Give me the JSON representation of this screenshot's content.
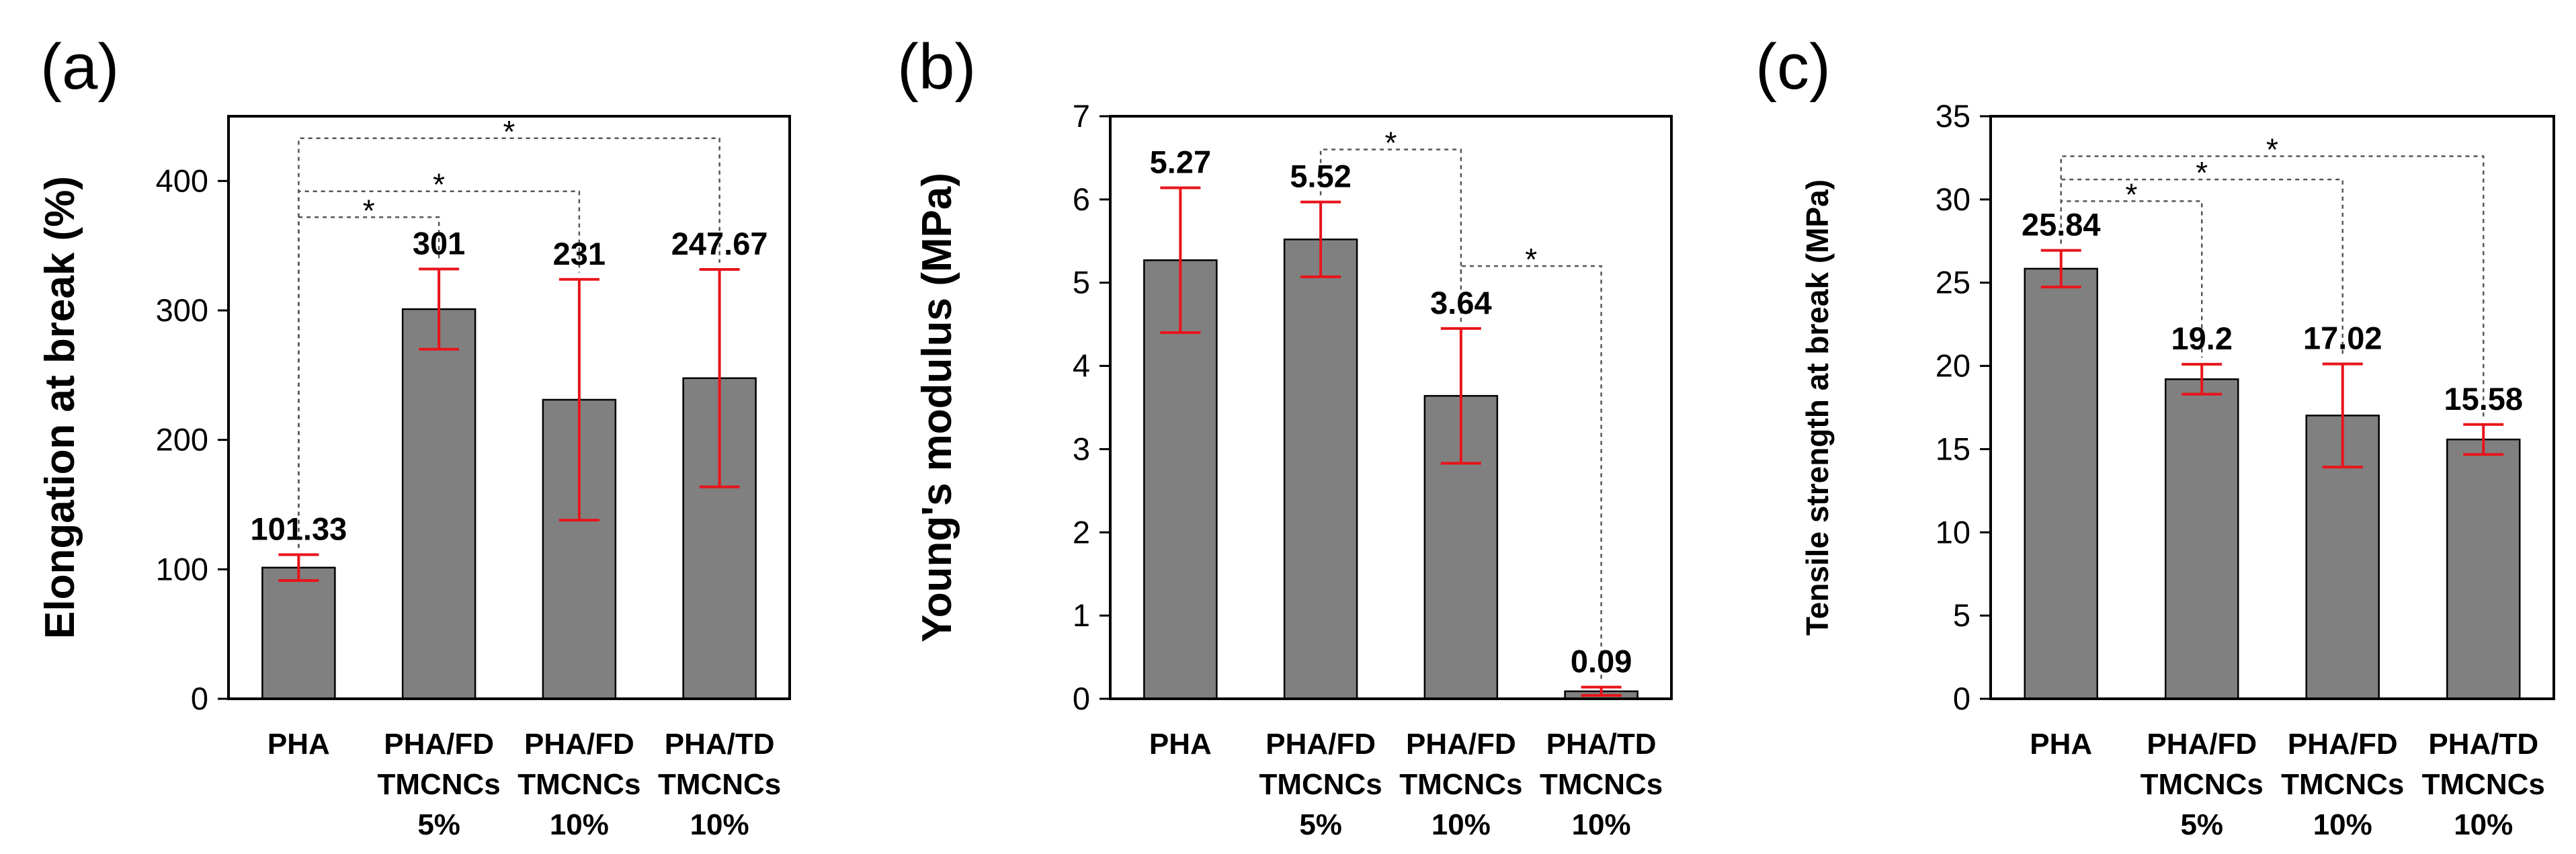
{
  "chart_data": [
    {
      "type": "bar",
      "panel": "(a)",
      "title": "",
      "xlabel": "",
      "ylabel": "Elongation at break (%)",
      "ylim": [
        0,
        450
      ],
      "yticks": [
        0,
        100,
        200,
        300,
        400
      ],
      "categories": [
        [
          "PHA"
        ],
        [
          "PHA/FD",
          "TMCNCs",
          "5%"
        ],
        [
          "PHA/FD",
          "TMCNCs",
          "10%"
        ],
        [
          "PHA/TD",
          "TMCNCs",
          "10%"
        ]
      ],
      "values": [
        101.33,
        301,
        231,
        247.67
      ],
      "value_labels": [
        "101.33",
        "301",
        "231",
        "247.67"
      ],
      "errors": [
        10,
        31,
        93,
        84
      ],
      "bar_color": "#808080",
      "error_color": "#e8141b",
      "significance": [
        {
          "from": 0,
          "to": 1,
          "level": 372,
          "label": "*"
        },
        {
          "from": 0,
          "to": 2,
          "level": 392,
          "label": "*"
        },
        {
          "from": 0,
          "to": 3,
          "level": 433,
          "label": "*"
        }
      ]
    },
    {
      "type": "bar",
      "panel": "(b)",
      "title": "",
      "xlabel": "",
      "ylabel": "Young's modulus (MPa)",
      "ylim": [
        0,
        7
      ],
      "yticks": [
        0,
        1,
        2,
        3,
        4,
        5,
        6,
        7
      ],
      "categories": [
        [
          "PHA"
        ],
        [
          "PHA/FD",
          "TMCNCs",
          "5%"
        ],
        [
          "PHA/FD",
          "TMCNCs",
          "10%"
        ],
        [
          "PHA/TD",
          "TMCNCs",
          "10%"
        ]
      ],
      "values": [
        5.27,
        5.52,
        3.64,
        0.09
      ],
      "value_labels": [
        "5.27",
        "5.52",
        "3.64",
        "0.09"
      ],
      "errors": [
        0.87,
        0.45,
        0.81,
        0.05
      ],
      "bar_color": "#808080",
      "error_color": "#e8141b",
      "significance": [
        {
          "from": 1,
          "to": 2,
          "level": 6.6,
          "label": "*"
        },
        {
          "from": 2,
          "to": 3,
          "level": 5.2,
          "label": "*"
        }
      ]
    },
    {
      "type": "bar",
      "panel": "(c)",
      "title": "",
      "xlabel": "",
      "ylabel": "Tensile strength at break (MPa)",
      "ylim": [
        0,
        35
      ],
      "yticks": [
        0,
        5,
        10,
        15,
        20,
        25,
        30,
        35
      ],
      "categories": [
        [
          "PHA"
        ],
        [
          "PHA/FD",
          "TMCNCs",
          "5%"
        ],
        [
          "PHA/FD",
          "TMCNCs",
          "10%"
        ],
        [
          "PHA/TD",
          "TMCNCs",
          "10%"
        ]
      ],
      "values": [
        25.84,
        19.2,
        17.02,
        15.58
      ],
      "value_labels": [
        "25.84",
        "19.2",
        "17.02",
        "15.58"
      ],
      "errors": [
        1.1,
        0.9,
        3.1,
        0.9
      ],
      "bar_color": "#808080",
      "error_color": "#e8141b",
      "significance": [
        {
          "from": 0,
          "to": 1,
          "level": 29.9,
          "label": "*"
        },
        {
          "from": 0,
          "to": 2,
          "level": 31.2,
          "label": "*"
        },
        {
          "from": 0,
          "to": 3,
          "level": 32.6,
          "label": "*"
        }
      ]
    }
  ]
}
